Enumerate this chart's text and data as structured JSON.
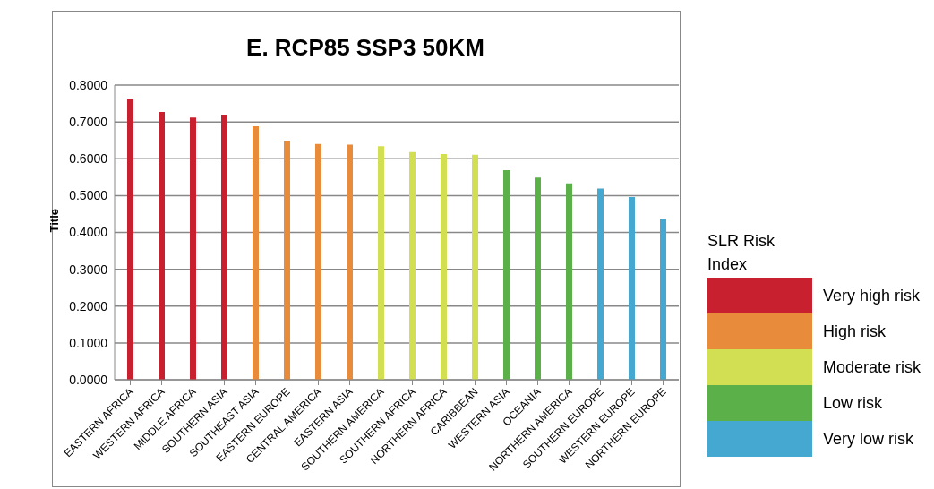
{
  "chart_data": {
    "type": "bar",
    "title": "E. RCP85 SSP3 50KM",
    "ylabel": "Title",
    "legend_title": "SLR Risk Index",
    "stacked": true,
    "categories": [
      "EASTERN AFRICA",
      "WESTERN AFRICA",
      "MIDDLE AFRICA",
      "SOUTHERN ASIA",
      "SOUTHEAST ASIA",
      "EASTERN EUROPE",
      "CENTRAL AMERICA",
      "EASTERN ASIA",
      "SOUTHERN AMERICA",
      "SOUTHERN AFRICA",
      "NORTHERN AFRICA",
      "CARIBBEAN",
      "WESTERN ASIA",
      "OCEANIA",
      "NORTHERN AMERICA",
      "SOUTHERN EUROPE",
      "WESTERN EUROPE",
      "NORTHERN EUROPE"
    ],
    "series": [
      {
        "name": "Very high risk",
        "color": "#c8202f",
        "values": [
          0.761,
          0.727,
          0.712,
          0.72,
          null,
          null,
          null,
          null,
          null,
          null,
          null,
          null,
          null,
          null,
          null,
          null,
          null,
          null
        ]
      },
      {
        "name": "High risk",
        "color": "#e88c3c",
        "values": [
          null,
          null,
          null,
          null,
          0.688,
          0.649,
          0.64,
          0.638,
          null,
          null,
          null,
          null,
          null,
          null,
          null,
          null,
          null,
          null
        ]
      },
      {
        "name": "Moderate risk",
        "color": "#d2df52",
        "values": [
          null,
          null,
          null,
          null,
          null,
          null,
          null,
          null,
          0.634,
          0.618,
          0.613,
          0.611,
          null,
          null,
          null,
          null,
          null,
          null
        ]
      },
      {
        "name": "Low risk",
        "color": "#5cb04a",
        "values": [
          null,
          null,
          null,
          null,
          null,
          null,
          null,
          null,
          null,
          null,
          null,
          null,
          0.569,
          0.549,
          0.533,
          null,
          null,
          null
        ]
      },
      {
        "name": "Very low risk",
        "color": "#45a8d0",
        "values": [
          null,
          null,
          null,
          null,
          null,
          null,
          null,
          null,
          null,
          null,
          null,
          null,
          null,
          null,
          null,
          0.519,
          0.496,
          0.435
        ]
      }
    ],
    "ylim": [
      0,
      0.8
    ],
    "yticks": [
      {
        "value": 0,
        "label": "0.0000"
      },
      {
        "value": 0.1,
        "label": "0.1000"
      },
      {
        "value": 0.2,
        "label": "0.2000"
      },
      {
        "value": 0.3,
        "label": "0.3000"
      },
      {
        "value": 0.4,
        "label": "0.4000"
      },
      {
        "value": 0.5,
        "label": "0.5000"
      },
      {
        "value": 0.6,
        "label": "0.6000"
      },
      {
        "value": 0.7,
        "label": "0.7000"
      },
      {
        "value": 0.8,
        "label": "0.8000"
      }
    ],
    "grid": "y",
    "legend": "right"
  }
}
